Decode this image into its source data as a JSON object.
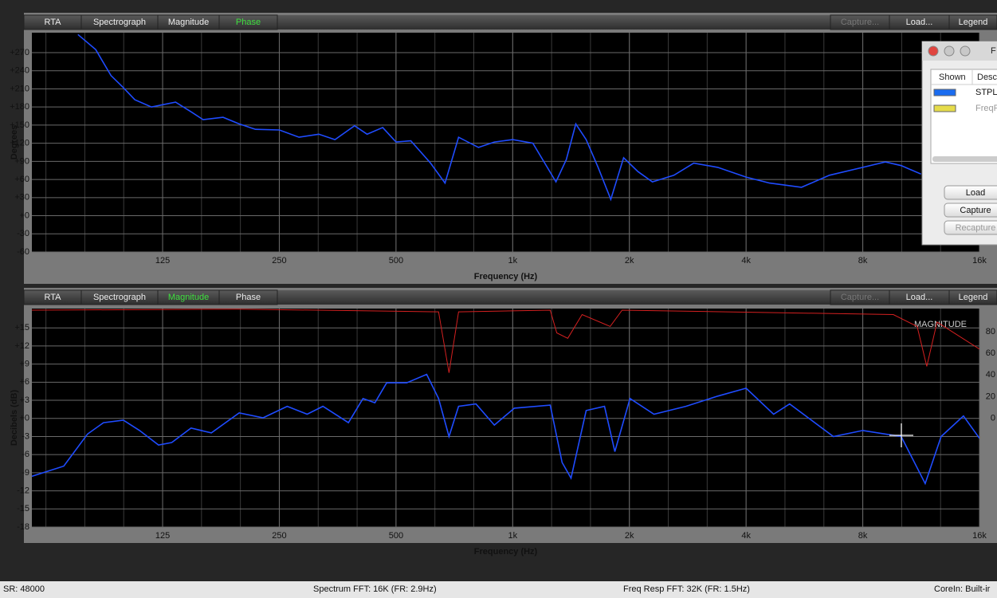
{
  "toolbar": {
    "tabs": [
      "RTA",
      "Spectrograph",
      "Magnitude",
      "Phase"
    ],
    "buttons": [
      "Capture...",
      "Load...",
      "Legend"
    ],
    "disabled_buttons": [
      0
    ]
  },
  "chart_data": [
    {
      "type": "line",
      "active_tab": 3,
      "x_label": "Frequency (Hz)",
      "y_label": "Degrees",
      "xscale": "log",
      "grid": true,
      "xlim": [
        57.5,
        16000
      ],
      "ylim": [
        -60,
        303
      ],
      "xticks": [
        125,
        250,
        500,
        {
          "value": 1000,
          "label": "1k"
        },
        {
          "value": 2000,
          "label": "2k"
        },
        {
          "value": 4000,
          "label": "4k"
        },
        {
          "value": 8000,
          "label": "8k"
        },
        {
          "value": 16000,
          "label": "16k"
        }
      ],
      "yticks": [
        -60,
        -30,
        {
          "value": 0,
          "label": "+0"
        },
        {
          "value": 30,
          "label": "+30"
        },
        {
          "value": 60,
          "label": "+60"
        },
        {
          "value": 90,
          "label": "+90"
        },
        {
          "value": 120,
          "label": "+120"
        },
        {
          "value": 150,
          "label": "+150"
        },
        {
          "value": 180,
          "label": "+180"
        },
        {
          "value": 210,
          "label": "+210"
        },
        {
          "value": 240,
          "label": "+240"
        },
        {
          "value": 270,
          "label": "+270"
        }
      ],
      "series": [
        {
          "color": "#1f4cff",
          "x": [
            75.6,
            84,
            92,
            99,
            106,
            117,
            135,
            148,
            159,
            179,
            197,
            217,
            250,
            281,
            316,
            348,
            391,
            421,
            462,
            500,
            546,
            614,
            669,
            725,
            816,
            897,
            1000,
            1127,
            1293,
            1375,
            1455,
            1547,
            1661,
            1791,
            1933,
            2105,
            2293,
            2605,
            2932,
            3380,
            4000,
            4600,
            5560,
            6560,
            8000,
            9150,
            10050,
            11310
          ],
          "values": [
            300,
            275,
            232,
            212,
            192,
            180,
            188,
            172,
            159,
            163,
            152,
            143,
            142,
            130,
            135,
            126,
            149,
            135,
            146,
            122,
            124,
            87,
            54,
            130,
            113,
            122,
            126,
            120,
            56,
            93,
            152,
            126,
            80,
            27,
            96,
            73,
            56,
            67,
            87,
            80,
            64,
            54,
            47,
            67,
            80,
            89,
            83,
            69
          ]
        }
      ]
    },
    {
      "type": "line",
      "active_tab": 2,
      "x_label": "Frequency (Hz)",
      "y_label": "Decibels (dB)",
      "xscale": "log",
      "grid": true,
      "annotation": "MAGNITUDE",
      "xlim": [
        57.5,
        16000
      ],
      "ylim": [
        -18,
        18.2
      ],
      "y2lim": [
        -100.7,
        101.5
      ],
      "xticks": [
        125,
        250,
        500,
        {
          "value": 1000,
          "label": "1k"
        },
        {
          "value": 2000,
          "label": "2k"
        },
        {
          "value": 4000,
          "label": "4k"
        },
        {
          "value": 8000,
          "label": "8k"
        },
        {
          "value": 16000,
          "label": "16k"
        }
      ],
      "yticks": [
        -18,
        -15,
        -12,
        -9,
        -6,
        -3,
        {
          "value": 0,
          "label": "+0"
        },
        {
          "value": 3,
          "label": "+3"
        },
        {
          "value": 6,
          "label": "+6"
        },
        {
          "value": 9,
          "label": "+9"
        },
        {
          "value": 12,
          "label": "+12"
        },
        {
          "value": 15,
          "label": "+15"
        }
      ],
      "y2ticks": [
        0,
        20,
        40,
        60,
        80
      ],
      "series": [
        {
          "color": "#1f4cff",
          "x": [
            57.5,
            69.5,
            80,
            88,
            99,
            109,
            122,
            132,
            148,
            167,
            197,
            227,
            262,
            295,
            324,
            377,
            411,
            441,
            473,
            533,
            600,
            644,
            685,
            725,
            804,
            897,
            1010,
            1250,
            1341,
            1414,
            1547,
            1725,
            1835,
            2007,
            2315,
            2797,
            3380,
            4000,
            4710,
            5180,
            6720,
            8000,
            10050,
            11590,
            12740,
            14550,
            16000
          ],
          "values": [
            -9.6,
            -7.9,
            -2.6,
            -0.7,
            -0.3,
            -2.0,
            -4.4,
            -4.0,
            -1.6,
            -2.4,
            0.9,
            0.1,
            2.0,
            0.7,
            2.0,
            -0.7,
            3.3,
            2.6,
            5.9,
            5.9,
            7.3,
            3.3,
            -3.0,
            2.0,
            2.4,
            -1.1,
            1.7,
            2.2,
            -7.3,
            -9.9,
            1.3,
            2.0,
            -5.5,
            3.3,
            0.7,
            2.0,
            3.7,
            5.0,
            0.7,
            2.4,
            -3.0,
            -2.0,
            -3.0,
            -10.8,
            -3.0,
            0.4,
            -3.3
          ]
        },
        {
          "color": "#d42020",
          "axis": "y2",
          "x": [
            57.5,
            197,
            644,
            685,
            725,
            1250,
            1299,
            1387,
            1510,
            1784,
            1915,
            9590,
            11050,
            11700,
            12440,
            16000
          ],
          "values": [
            100,
            101,
            98.5,
            42,
            98.5,
            100,
            79,
            74,
            96,
            85,
            100,
            96,
            85,
            48,
            89,
            64
          ]
        }
      ]
    }
  ],
  "dialog": {
    "title": "F",
    "columns": [
      "Shown",
      "Desc"
    ],
    "rows": [
      {
        "name": "STPLI",
        "color": "#1a6cf0",
        "shown": true
      },
      {
        "name": "FreqR",
        "color": "#e6dc4a",
        "shown": false
      }
    ],
    "buttons": [
      "Load",
      "Capture",
      "Recapture"
    ],
    "disabled_buttons": [
      2
    ]
  },
  "status_bar": [
    "SR: 48000",
    "Spectrum FFT: 16K (FR: 2.9Hz)",
    "Freq Resp FFT: 32K (FR: 1.5Hz)",
    "CoreIn: Built-ir"
  ]
}
